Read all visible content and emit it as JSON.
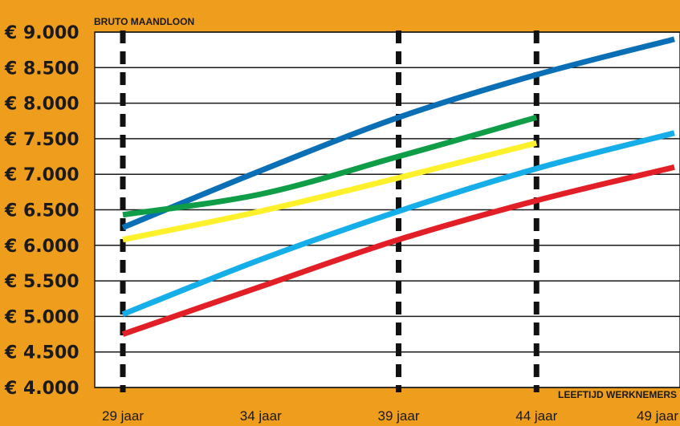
{
  "chart_data": {
    "type": "line",
    "ylabel": "BRUTO MAANDLOON",
    "xlabel": "LEEFTIJD WERKNEMERS",
    "ylim": [
      4000,
      9000
    ],
    "xlim": [
      29,
      49
    ],
    "y_ticks": [
      9000,
      8500,
      8000,
      7500,
      7000,
      6500,
      6000,
      5500,
      5000,
      4500,
      4000
    ],
    "y_tick_labels": [
      "€ 9.000",
      "€ 8.500",
      "€ 8.000",
      "€ 7.500",
      "€ 7.000",
      "€ 6.500",
      "€ 6.000",
      "€ 5.500",
      "€ 5.000",
      "€ 4.500",
      "€ 4.000"
    ],
    "x_ticks": [
      29,
      34,
      39,
      44,
      49
    ],
    "x_tick_labels": [
      "29 jaar",
      "34 jaar",
      "39 jaar",
      "44 jaar",
      "49 jaar"
    ],
    "vertical_markers": [
      29,
      39,
      44
    ],
    "grid": "horizontal",
    "series": [
      {
        "color": "#0a6fb5",
        "x": [
          29,
          34,
          39,
          44,
          49
        ],
        "y": [
          6250,
          7050,
          7800,
          8400,
          8900
        ]
      },
      {
        "color": "#0f9d48",
        "x": [
          29,
          34,
          39,
          44
        ],
        "y": [
          6430,
          6720,
          7250,
          7800
        ]
      },
      {
        "color": "#fdf12b",
        "x": [
          29,
          34,
          39,
          44
        ],
        "y": [
          6080,
          6480,
          6950,
          7440
        ]
      },
      {
        "color": "#16aee8",
        "x": [
          29,
          34,
          39,
          44,
          49
        ],
        "y": [
          5030,
          5800,
          6480,
          7080,
          7580
        ]
      },
      {
        "color": "#e21f26",
        "x": [
          29,
          34,
          39,
          44,
          49
        ],
        "y": [
          4750,
          5420,
          6080,
          6630,
          7100
        ]
      }
    ]
  }
}
